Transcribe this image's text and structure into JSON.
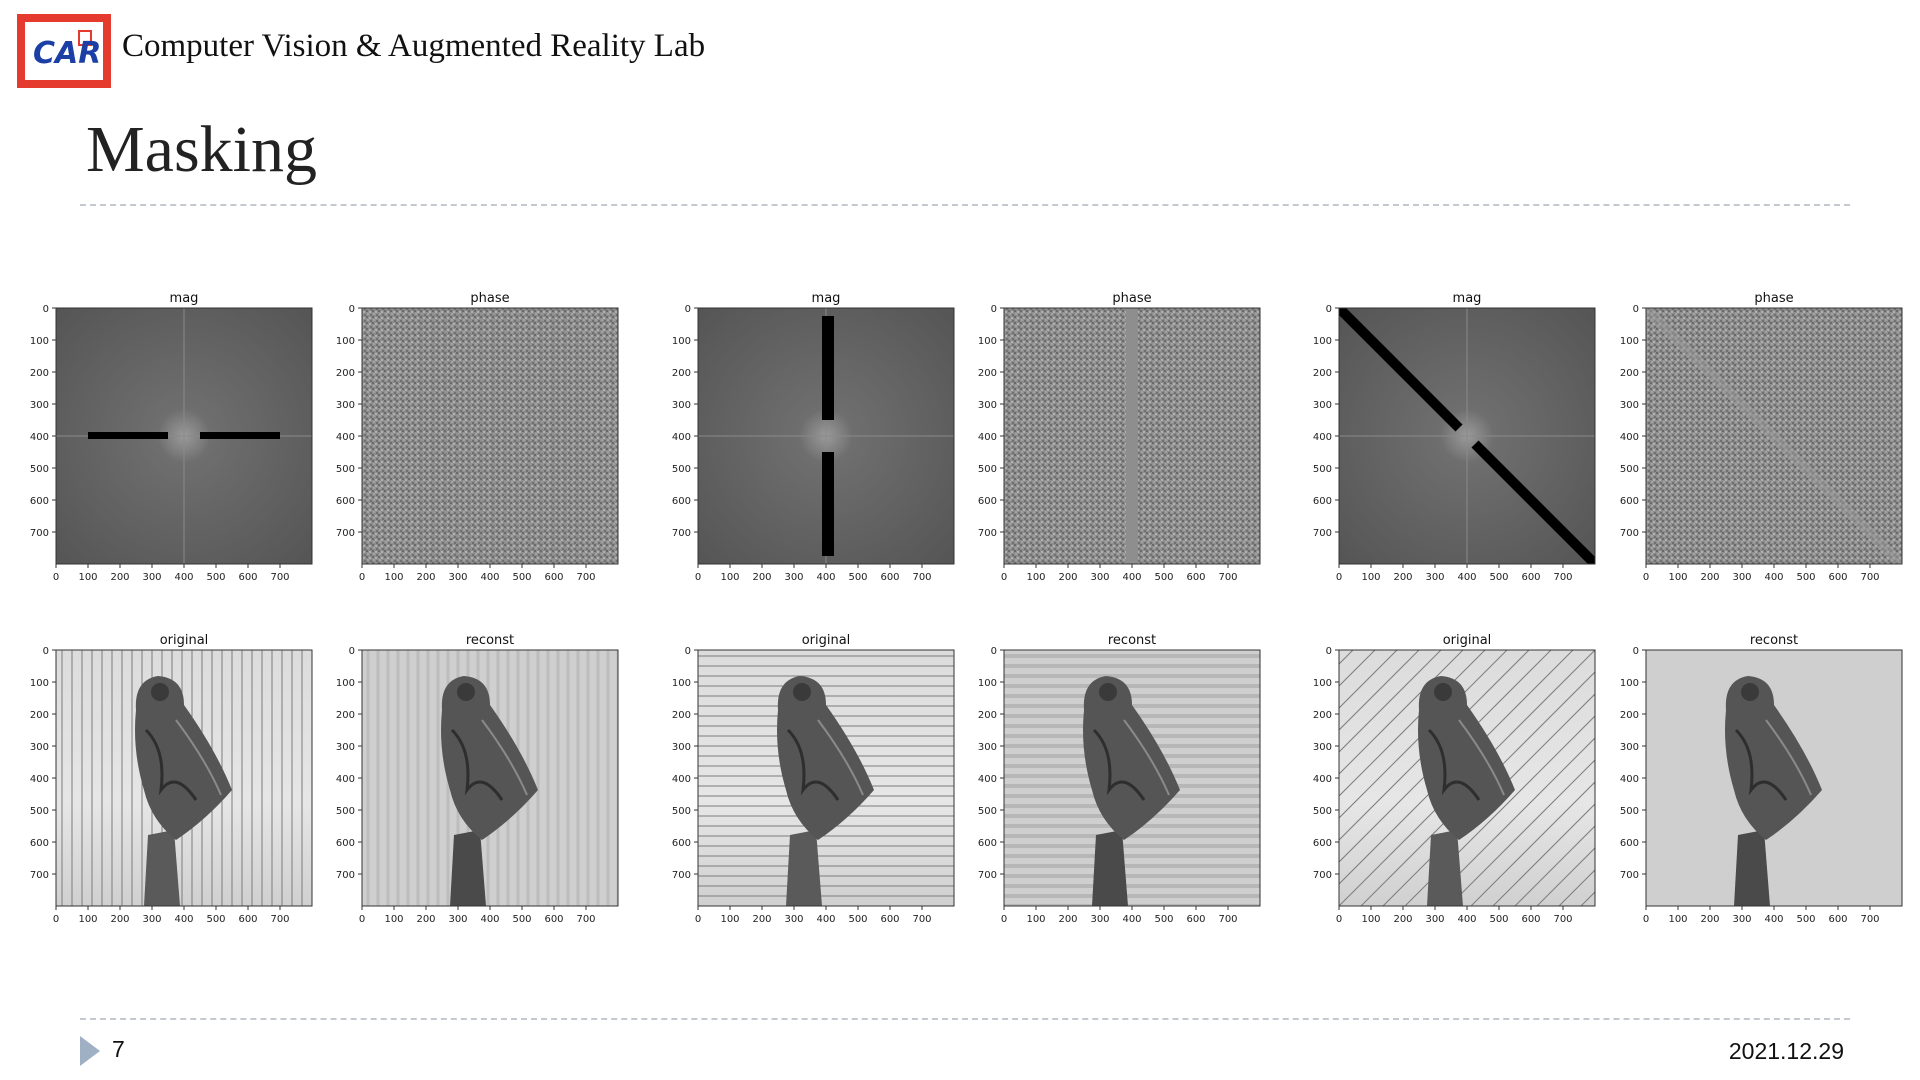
{
  "header": {
    "lab_name": "Computer Vision & Augmented Reality Lab",
    "logo_text": "CAR"
  },
  "slide": {
    "title": "Masking"
  },
  "footer": {
    "page_number": "7",
    "date": "2021.12.29"
  },
  "axes": {
    "y_ticks": [
      "0",
      "100",
      "200",
      "300",
      "400",
      "500",
      "600",
      "700"
    ],
    "x_ticks": [
      "0",
      "100",
      "200",
      "300",
      "400",
      "500",
      "600",
      "700"
    ]
  },
  "panels": [
    {
      "title": "mag",
      "kind": "mag",
      "mask": "horizontal-bar"
    },
    {
      "title": "phase",
      "kind": "phase",
      "mask": "vertical-lines"
    },
    {
      "title": "mag",
      "kind": "mag",
      "mask": "vertical-bar"
    },
    {
      "title": "phase",
      "kind": "phase",
      "mask": "horizontal-lines"
    },
    {
      "title": "mag",
      "kind": "mag",
      "mask": "diagonal-bar"
    },
    {
      "title": "phase",
      "kind": "phase",
      "mask": "diagonal-lines"
    },
    {
      "title": "original",
      "kind": "image",
      "pattern": "vertical-stripes"
    },
    {
      "title": "reconst",
      "kind": "image",
      "pattern": "faint-vertical"
    },
    {
      "title": "original",
      "kind": "image",
      "pattern": "horizontal-stripes"
    },
    {
      "title": "reconst",
      "kind": "image",
      "pattern": "faint-horizontal"
    },
    {
      "title": "original",
      "kind": "image",
      "pattern": "diagonal-stripes"
    },
    {
      "title": "reconst",
      "kind": "image",
      "pattern": "none"
    }
  ],
  "colors": {
    "logo_red": "#e53a2e",
    "logo_blue": "#1b3fa5",
    "rule": "#c4c9cf",
    "footer_arrow": "#9fb0c4"
  }
}
